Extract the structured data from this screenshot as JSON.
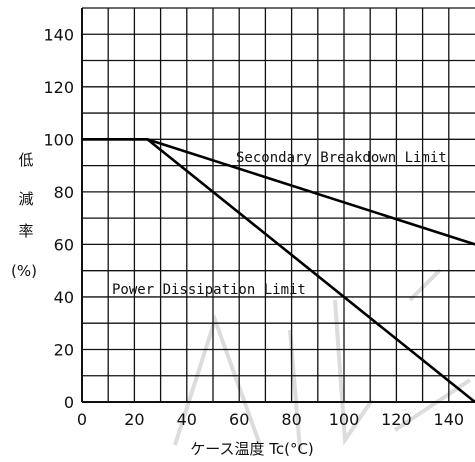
{
  "chart_data": {
    "type": "line",
    "ylabel_chars": [
      "低",
      "減",
      "率",
      "(%)"
    ],
    "xlabel": "ケース温度 Tc(°C)",
    "xlim": [
      0,
      150
    ],
    "ylim": [
      0,
      150
    ],
    "x_ticks": [
      0,
      20,
      40,
      60,
      80,
      100,
      120,
      140
    ],
    "y_ticks": [
      0,
      20,
      40,
      60,
      80,
      100,
      120,
      140
    ],
    "grid": true,
    "series": [
      {
        "name": "Secondary Breakdown Limit",
        "points": [
          [
            0,
            100
          ],
          [
            25,
            100
          ],
          [
            150,
            60
          ]
        ]
      },
      {
        "name": "Power Dissipation Limit",
        "points": [
          [
            0,
            100
          ],
          [
            25,
            100
          ],
          [
            150,
            0
          ]
        ]
      }
    ]
  }
}
